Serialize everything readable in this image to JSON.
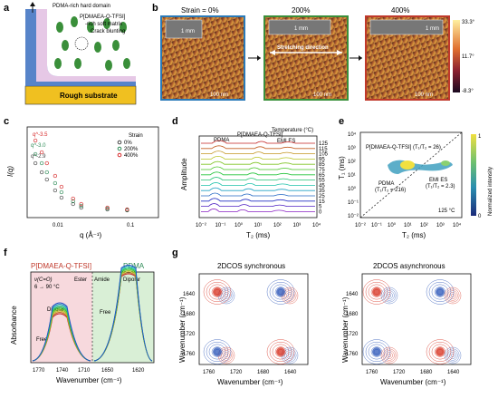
{
  "panels": {
    "a": {
      "letter": "a",
      "hard_domain": "PDMA-rich hard domain",
      "soft_matrix_1": "P[DMAEA-Q-TFSI]",
      "soft_matrix_2": "-rich soft matrix",
      "crack": "Crack blunting",
      "substrate": "Rough substrate"
    },
    "b": {
      "letter": "b",
      "strain0": "Strain = 0%",
      "strain200": "200%",
      "strain400": "400%",
      "inset_scale": "1 mm",
      "afm_scale": "100 nm",
      "stretch_dir": "Stretching direction",
      "colorbar_top": "33.3°",
      "colorbar_mid": "11.7°",
      "colorbar_bot": "-8.3°"
    },
    "c": {
      "letter": "c",
      "ylabel": "I(q)",
      "xlabel": "q (Å⁻¹)",
      "legend_title": "Strain",
      "slope1": "q^-3.5",
      "slope2": "q^-3.0",
      "slope3": "q^-2.9",
      "tick_001": "0.01",
      "tick_01": "0.1"
    },
    "d": {
      "letter": "d",
      "ylabel": "Amplitude",
      "xlabel": "T₂ (ms)",
      "temp_title": "Temperature (°C)",
      "pdma": "PDMA",
      "pdmaea": "P[DMAEA-Q-TFSI]",
      "emi": "EMI ES",
      "temps": [
        "125",
        "115",
        "105",
        "95",
        "85",
        "75",
        "65",
        "55",
        "45",
        "35",
        "25",
        "15",
        "5",
        "0"
      ],
      "xticks": [
        "10⁻²",
        "10⁻¹",
        "10⁰",
        "10¹",
        "10²",
        "10³",
        "10⁴"
      ]
    },
    "e": {
      "letter": "e",
      "ylabel": "T₁ (ms)",
      "xlabel": "T₂ (ms)",
      "pdmaea": "P[DMAEA-Q-TFSI] (T₁/T₂ = 26)",
      "pdma_1": "PDMA",
      "pdma_2": "(T₁/T₂ = 216)",
      "emi_1": "EMI ES",
      "emi_2": "(T₁/T₂ = 2.3)",
      "temp": "125 °C",
      "cbar_label": "Normalized intensity",
      "cbar_1": "1",
      "cbar_0": "0",
      "xticks": [
        "10⁻²",
        "10⁻¹",
        "10⁰",
        "10¹",
        "10²",
        "10³",
        "10⁴"
      ],
      "yticks": [
        "10⁴",
        "10³",
        "10²",
        "10¹",
        "10⁰",
        "10⁻¹",
        "10⁻²"
      ]
    },
    "f": {
      "letter": "f",
      "left_title": "P[DMAEA-Q-TFSI]",
      "right_title": "PDMA",
      "ylabel": "Absorbance",
      "xlabel": "Wavenumber (cm⁻¹)",
      "nu": "ν(C=O)",
      "range": "6 → 90 °C",
      "ester": "Ester",
      "amide": "Amide",
      "dipolar1": "Dipolar",
      "dipolar2": "Dipolar",
      "free1": "Free",
      "free2": "Free",
      "xticks": [
        "1770",
        "1740",
        "1710",
        "1650",
        "1620"
      ]
    },
    "g": {
      "letter": "g",
      "sync_title": "2DCOS synchronous",
      "async_title": "2DCOS asynchronous",
      "ylabel": "Wavenumber (cm⁻¹)",
      "xlabel": "Wavenumber (cm⁻¹)",
      "yticks": [
        "1640",
        "1680",
        "1720",
        "1760"
      ],
      "xticks": [
        "1760",
        "1720",
        "1680",
        "1640"
      ]
    }
  },
  "chart_data": [
    {
      "panel": "c",
      "type": "scatter",
      "series": [
        {
          "name": "0%",
          "x": [
            0.004,
            0.005,
            0.006,
            0.008,
            0.01,
            0.015,
            0.02,
            0.05,
            0.1
          ],
          "y": [
            6,
            5,
            4.2,
            3,
            2.2,
            1.5,
            1.1,
            0.9,
            0.8
          ]
        },
        {
          "name": "200%",
          "x": [
            0.004,
            0.005,
            0.006,
            0.008,
            0.01,
            0.015,
            0.02,
            0.05,
            0.1
          ],
          "y": [
            7,
            6,
            5,
            3.8,
            2.8,
            1.8,
            1.3,
            1,
            0.85
          ]
        },
        {
          "name": "400%",
          "x": [
            0.004,
            0.005,
            0.006,
            0.008,
            0.01,
            0.015,
            0.02,
            0.05,
            0.1
          ],
          "y": [
            8.5,
            7.2,
            6,
            4.6,
            3.4,
            2.1,
            1.5,
            1.1,
            0.9
          ]
        }
      ]
    },
    {
      "panel": "d",
      "type": "line",
      "xscale": "log",
      "x_range": [
        0.01,
        10000
      ]
    },
    {
      "panel": "f",
      "type": "line",
      "series": [
        {
          "name": "P[DMAEA-Q-TFSI]"
        },
        {
          "name": "PDMA"
        }
      ]
    }
  ],
  "colors": {
    "afm_border_0": "#2a7ab8",
    "afm_border_200": "#3a8f3a",
    "afm_border_400": "#c0392b",
    "s0": "#444444",
    "s200": "#2e8b57",
    "s400": "#d62728",
    "f_left_bg": "#f7d9dd",
    "f_right_bg": "#d9efd6"
  }
}
